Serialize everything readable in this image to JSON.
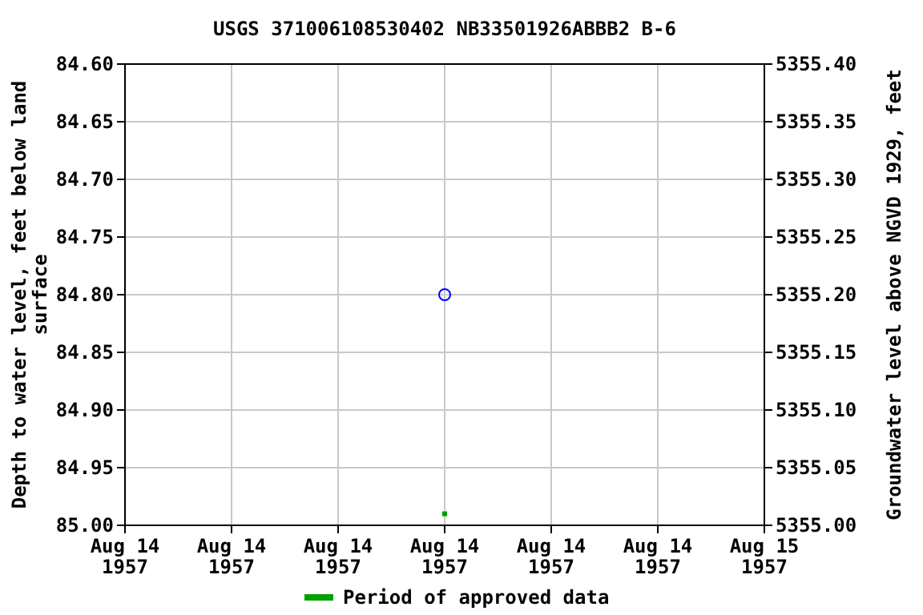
{
  "chart_data": {
    "type": "scatter",
    "title": "USGS 371006108530402 NB33501926ABBB2   B-6",
    "ylabel": "Depth to water level, feet below land surface",
    "y2label": "Groundwater level above NGVD 1929, feet",
    "x": [
      "1957-08-14T12:00"
    ],
    "xlim": [
      "1957-08-14T00:00",
      "1957-08-15T00:00"
    ],
    "xticks": [
      {
        "value": "1957-08-14T00:00",
        "label": "Aug 14\n1957"
      },
      {
        "value": "1957-08-14T04:00",
        "label": "Aug 14\n1957"
      },
      {
        "value": "1957-08-14T08:00",
        "label": "Aug 14\n1957"
      },
      {
        "value": "1957-08-14T12:00",
        "label": "Aug 14\n1957"
      },
      {
        "value": "1957-08-14T16:00",
        "label": "Aug 14\n1957"
      },
      {
        "value": "1957-08-14T20:00",
        "label": "Aug 14\n1957"
      },
      {
        "value": "1957-08-15T00:00",
        "label": "Aug 15\n1957"
      }
    ],
    "ylim": [
      85.0,
      84.6
    ],
    "yticks": [
      {
        "value": 84.6,
        "label": "84.60"
      },
      {
        "value": 84.65,
        "label": "84.65"
      },
      {
        "value": 84.7,
        "label": "84.70"
      },
      {
        "value": 84.75,
        "label": "84.75"
      },
      {
        "value": 84.8,
        "label": "84.80"
      },
      {
        "value": 84.85,
        "label": "84.85"
      },
      {
        "value": 84.9,
        "label": "84.90"
      },
      {
        "value": 84.95,
        "label": "84.95"
      },
      {
        "value": 85.0,
        "label": "85.00"
      }
    ],
    "y2lim": [
      5355.0,
      5355.4
    ],
    "y2ticks": [
      {
        "value": 5355.4,
        "label": "5355.40"
      },
      {
        "value": 5355.35,
        "label": "5355.35"
      },
      {
        "value": 5355.3,
        "label": "5355.30"
      },
      {
        "value": 5355.25,
        "label": "5355.25"
      },
      {
        "value": 5355.2,
        "label": "5355.20"
      },
      {
        "value": 5355.15,
        "label": "5355.15"
      },
      {
        "value": 5355.1,
        "label": "5355.10"
      },
      {
        "value": 5355.05,
        "label": "5355.05"
      },
      {
        "value": 5355.0,
        "label": "5355.00"
      }
    ],
    "series": [
      {
        "color": "#0000ff",
        "values": [
          84.8
        ],
        "marker": "circle"
      },
      {
        "name": "Period of approved data",
        "color": "#00a000",
        "values": [
          84.99
        ],
        "marker": "square"
      }
    ],
    "grid": true,
    "legend": "bottom"
  }
}
